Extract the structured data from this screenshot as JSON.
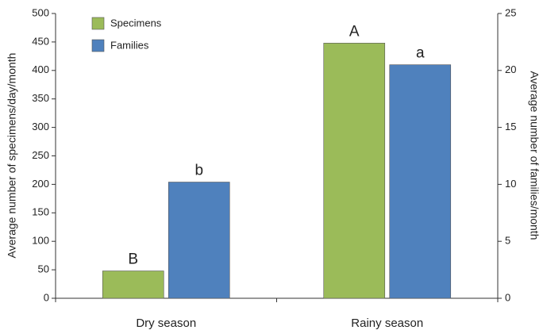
{
  "chart_data": {
    "type": "bar",
    "categories": [
      "Dry season",
      "Rainy season"
    ],
    "series": [
      {
        "name": "Specimens",
        "color": "#9bbb59",
        "values": [
          48,
          448
        ],
        "annotations": [
          "B",
          "A"
        ]
      },
      {
        "name": "Families",
        "color": "#4f81bd",
        "values": [
          10.2,
          20.5
        ],
        "axis": "y2",
        "annotations": [
          "b",
          "a"
        ]
      }
    ],
    "y_label": "Average number of specimens/day/month",
    "y2_label": "Average number of families/month",
    "ylim": [
      0,
      500
    ],
    "yticks": [
      0,
      50,
      100,
      150,
      200,
      250,
      300,
      350,
      400,
      450,
      500
    ],
    "y2lim": [
      0,
      25
    ],
    "y2ticks": [
      0,
      5,
      10,
      15,
      20,
      25
    ],
    "legend": "top-left"
  }
}
